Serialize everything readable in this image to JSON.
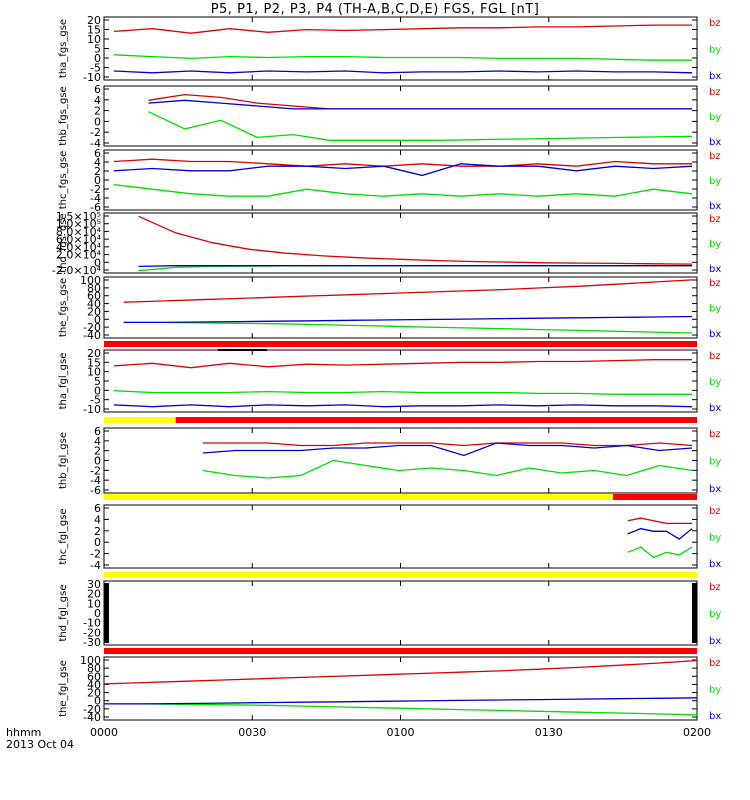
{
  "title": "P5, P1, P2, P3, P4 (TH-A,B,C,D,E) FGS, FGL [nT]",
  "footer": {
    "line1": "hhmm",
    "line2": "2013 Oct 04"
  },
  "x_ticks": [
    "0000",
    "0030",
    "0100",
    "0130",
    "0200"
  ],
  "colors": {
    "bx": "#0000cc",
    "by": "#00dd00",
    "bz": "#dd0000",
    "bar_yellow": "#ffff00",
    "bar_red": "#ff0000",
    "bar_black": "#000000",
    "axis": "#000000"
  },
  "chart_data": [
    {
      "type": "line",
      "ylabel": "tha_fgs_gse",
      "legend": [
        "bz",
        "by",
        "bx"
      ],
      "yticks": [
        "20",
        "15",
        "10",
        "5",
        "0",
        "-5",
        "-10"
      ],
      "ylim": [
        -13,
        22
      ],
      "x_range_hhmm": [
        "0000",
        "0200"
      ],
      "series": [
        {
          "name": "bz",
          "start_min": 2,
          "end_min": 119,
          "values": [
            14,
            15.5,
            13,
            15.5,
            13.5,
            15,
            14.5,
            15,
            15.5,
            16,
            16,
            16.5,
            16.5,
            17,
            17.5,
            17.5
          ]
        },
        {
          "name": "by",
          "start_min": 2,
          "end_min": 119,
          "values": [
            1,
            0,
            -1,
            0,
            -0.5,
            0,
            0,
            -0.5,
            -0.5,
            -0.5,
            -1,
            -1,
            -1,
            -1.5,
            -2,
            -2
          ]
        },
        {
          "name": "bx",
          "start_min": 2,
          "end_min": 119,
          "values": [
            -8,
            -9,
            -8,
            -9,
            -8,
            -8.5,
            -8,
            -9,
            -8.5,
            -8.5,
            -8,
            -8.5,
            -8,
            -8.5,
            -8.5,
            -9
          ]
        }
      ]
    },
    {
      "type": "line",
      "ylabel": "thb_fgs_gse",
      "legend": [
        "bz",
        "by",
        "bx"
      ],
      "yticks": [
        "6",
        "4",
        "2",
        "0",
        "-2",
        "-4"
      ],
      "ylim": [
        -4.5,
        6
      ],
      "series": [
        {
          "name": "bz",
          "start_min": 9,
          "end_min": 119,
          "values": [
            3.5,
            4.5,
            4,
            3,
            2.5,
            2,
            2,
            2,
            2,
            2,
            2,
            2,
            2,
            2,
            2,
            2
          ]
        },
        {
          "name": "by",
          "start_min": 9,
          "end_min": 119,
          "values": [
            1.5,
            -1.5,
            0,
            -3,
            -2.5,
            -3.5,
            -3.5,
            -3.5,
            -3.5,
            -3.4,
            -3.3,
            -3.2,
            -3.1,
            -3.0,
            -2.9,
            -2.8
          ]
        },
        {
          "name": "bx",
          "start_min": 9,
          "end_min": 119,
          "values": [
            3,
            3.5,
            3,
            2.5,
            2,
            2,
            2,
            2,
            2,
            2,
            2,
            2,
            2,
            2,
            2,
            2
          ]
        }
      ]
    },
    {
      "type": "line",
      "ylabel": "thc_fgs_gse",
      "legend": [
        "bz",
        "by",
        "bx"
      ],
      "yticks": [
        "6",
        "4",
        "2",
        "0",
        "-2",
        "-4",
        "-6"
      ],
      "ylim": [
        -6.5,
        6.5
      ],
      "series": [
        {
          "name": "bz",
          "start_min": 2,
          "end_min": 119,
          "values": [
            4,
            4.5,
            4,
            4,
            3.5,
            3,
            3.5,
            3,
            3.5,
            3,
            3,
            3.5,
            3,
            4,
            3.5,
            3.5
          ]
        },
        {
          "name": "by",
          "start_min": 2,
          "end_min": 119,
          "values": [
            -1,
            -2,
            -3,
            -3.5,
            -3.5,
            -2,
            -3,
            -3.5,
            -3,
            -3.5,
            -3,
            -3.5,
            -3,
            -3.5,
            -2,
            -3
          ]
        },
        {
          "name": "bx",
          "start_min": 2,
          "end_min": 119,
          "values": [
            2,
            2.5,
            2,
            2,
            3,
            3,
            2.5,
            3,
            1,
            3.5,
            3,
            3,
            2,
            3,
            2.5,
            3
          ]
        }
      ]
    },
    {
      "type": "line",
      "ylabel": "thd_fgs_gse",
      "legend": [
        "bz",
        "by",
        "bx"
      ],
      "yticks": [
        "1.5×10⁵",
        "1.0×10⁵",
        "8.0×10⁴",
        "6.0×10⁴",
        "4.0×10⁴",
        "2.0×10⁴",
        "0",
        "-2.0×10⁴"
      ],
      "ylim": [
        -22000,
        160000
      ],
      "series": [
        {
          "name": "bz",
          "start_min": 7,
          "end_min": 119,
          "values": [
            150000,
            100000,
            70000,
            50000,
            38000,
            30000,
            24000,
            20000,
            16000,
            13000,
            11000,
            9000,
            8000,
            7000,
            6000,
            5000
          ]
        },
        {
          "name": "by",
          "start_min": 7,
          "end_min": 119,
          "values": [
            -15000,
            -5000,
            -2000,
            -1000,
            -500,
            0,
            0,
            0,
            0,
            0,
            0,
            0,
            0,
            0,
            0,
            0
          ]
        },
        {
          "name": "bx",
          "start_min": 7,
          "end_min": 119,
          "values": [
            -2000,
            0,
            0,
            0,
            0,
            0,
            0,
            0,
            0,
            0,
            0,
            0,
            0,
            0,
            0,
            0
          ]
        }
      ]
    },
    {
      "type": "line",
      "ylabel": "the_fgs_gse",
      "legend": [
        "bz",
        "by",
        "bx"
      ],
      "yticks": [
        "100",
        "80",
        "60",
        "40",
        "20",
        "0",
        "-20",
        "-40"
      ],
      "ylim": [
        -45,
        100
      ],
      "series": [
        {
          "name": "bz",
          "start_min": 4,
          "end_min": 119,
          "values": [
            40,
            43,
            46,
            49,
            52,
            55,
            58,
            61,
            64,
            67,
            70,
            74,
            78,
            83,
            88,
            93
          ]
        },
        {
          "name": "by",
          "start_min": 4,
          "end_min": 119,
          "values": [
            -8,
            -8,
            -9,
            -10,
            -11,
            -13,
            -15,
            -17,
            -19,
            -21,
            -23,
            -25,
            -27,
            -29,
            -31,
            -33
          ]
        },
        {
          "name": "bx",
          "start_min": 4,
          "end_min": 119,
          "values": [
            -8,
            -8,
            -7,
            -6,
            -5,
            -4,
            -3,
            -2,
            -1,
            0,
            1,
            2,
            3,
            4,
            5,
            6
          ]
        }
      ]
    },
    {
      "type": "line",
      "ylabel": "tha_fgl_gse",
      "legend": [
        "bz",
        "by",
        "bx"
      ],
      "yticks": [
        "20",
        "15",
        "10",
        "5",
        "0",
        "-5",
        "-10"
      ],
      "ylim": [
        -12,
        23
      ],
      "series": [
        {
          "name": "bz",
          "start_min": 2,
          "end_min": 119,
          "values": [
            14,
            15.5,
            13,
            15.5,
            13.5,
            15,
            14.5,
            15,
            15.5,
            16,
            16,
            16.5,
            16.5,
            17,
            17.5,
            17.5
          ]
        },
        {
          "name": "by",
          "start_min": 2,
          "end_min": 119,
          "values": [
            0,
            -1,
            -1,
            -1,
            -0.5,
            -1,
            -1,
            -0.5,
            -1,
            -1,
            -1,
            -1.5,
            -1.5,
            -2,
            -2,
            -2
          ]
        },
        {
          "name": "bx",
          "start_min": 2,
          "end_min": 119,
          "values": [
            -8,
            -9,
            -8,
            -9,
            -8,
            -8.5,
            -8,
            -9,
            -8.5,
            -8.5,
            -8,
            -8.5,
            -8,
            -8.5,
            -8.5,
            -9
          ]
        }
      ]
    },
    {
      "type": "line",
      "ylabel": "thb_fgl_gse",
      "legend": [
        "bz",
        "by",
        "bx"
      ],
      "yticks": [
        "6",
        "4",
        "2",
        "0",
        "-2",
        "-4",
        "-6"
      ],
      "ylim": [
        -6.5,
        6.5
      ],
      "series": [
        {
          "name": "bz",
          "start_min": 20,
          "end_min": 119,
          "values": [
            3.5,
            3.5,
            3.5,
            3,
            3,
            3.5,
            3.5,
            3.5,
            3,
            3.5,
            3.5,
            3.5,
            3,
            3,
            3.5,
            3
          ]
        },
        {
          "name": "by",
          "start_min": 20,
          "end_min": 119,
          "values": [
            -2,
            -3,
            -3.5,
            -3,
            0,
            -1,
            -2,
            -1.5,
            -2,
            -3,
            -1.5,
            -2.5,
            -2,
            -3,
            -1,
            -2
          ]
        },
        {
          "name": "bx",
          "start_min": 20,
          "end_min": 119,
          "values": [
            1.5,
            2,
            2,
            2,
            2.5,
            2.5,
            3,
            3,
            1,
            3.5,
            3,
            3,
            2.5,
            3,
            2,
            2.5
          ]
        }
      ]
    },
    {
      "type": "line",
      "ylabel": "thc_fgl_gse",
      "legend": [
        "bz",
        "by",
        "bx"
      ],
      "yticks": [
        "6",
        "4",
        "2",
        "0",
        "-2",
        "-4"
      ],
      "ylim": [
        -5,
        7
      ],
      "series": [
        {
          "name": "bz",
          "start_min": 106,
          "end_min": 119,
          "values": [
            4,
            4.5,
            4,
            3.5,
            3.5,
            3.5
          ]
        },
        {
          "name": "by",
          "start_min": 106,
          "end_min": 119,
          "values": [
            -2,
            -1,
            -3,
            -2,
            -2.5,
            -1
          ]
        },
        {
          "name": "bx",
          "start_min": 106,
          "end_min": 119,
          "values": [
            1.5,
            2.5,
            2,
            2,
            0.5,
            2.5
          ]
        }
      ]
    },
    {
      "type": "line",
      "ylabel": "thd_fgl_gse",
      "legend": [
        "bz",
        "by",
        "bx"
      ],
      "yticks": [
        "30",
        "20",
        "10",
        "0",
        "-10",
        "-20",
        "-30"
      ],
      "ylim": [
        -35,
        35
      ],
      "series": []
    },
    {
      "type": "line",
      "ylabel": "the_fgl_gse",
      "legend": [
        "bz",
        "by",
        "bx"
      ],
      "yticks": [
        "100",
        "80",
        "60",
        "40",
        "20",
        "0",
        "-20",
        "-40"
      ],
      "ylim": [
        -45,
        100
      ],
      "series": [
        {
          "name": "bz",
          "start_min": 0,
          "end_min": 120,
          "values": [
            38,
            41,
            44,
            47,
            50,
            53,
            56,
            59,
            62,
            65,
            68,
            72,
            76,
            81,
            86,
            92
          ]
        },
        {
          "name": "by",
          "start_min": 0,
          "end_min": 120,
          "values": [
            -8,
            -8,
            -9,
            -10,
            -11,
            -13,
            -15,
            -17,
            -19,
            -21,
            -23,
            -25,
            -27,
            -29,
            -31,
            -33
          ]
        },
        {
          "name": "bx",
          "start_min": 0,
          "end_min": 120,
          "values": [
            -8,
            -8,
            -7,
            -6,
            -5,
            -4,
            -3,
            -2,
            -1,
            0,
            1,
            2,
            3,
            4,
            5,
            6
          ]
        }
      ]
    }
  ],
  "status_bars": [
    {
      "after_panel": 4,
      "segments": [
        {
          "color": "red",
          "start_min": 0,
          "end_min": 120
        }
      ]
    },
    {
      "after_panel": 5,
      "segments": [
        {
          "color": "yellow",
          "start_min": 0,
          "end_min": 14.5
        },
        {
          "color": "red",
          "start_min": 14.5,
          "end_min": 120
        }
      ]
    },
    {
      "after_panel": 6,
      "segments": [
        {
          "color": "yellow",
          "start_min": 0,
          "end_min": 103
        },
        {
          "color": "red",
          "start_min": 103,
          "end_min": 120
        }
      ]
    },
    {
      "after_panel": 7,
      "segments": [
        {
          "color": "yellow",
          "start_min": 0,
          "end_min": 120
        }
      ]
    },
    {
      "after_panel": 8,
      "segments": [
        {
          "color": "red",
          "start_min": 0,
          "end_min": 120
        }
      ]
    }
  ]
}
